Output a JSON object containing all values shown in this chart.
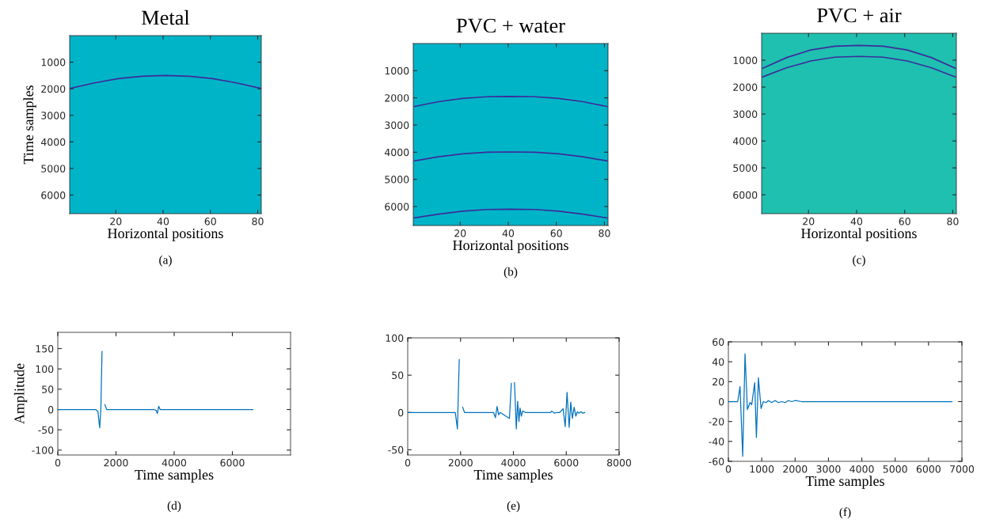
{
  "chart_data": [
    {
      "type": "line",
      "title": "Metal",
      "ylabel": "Time samples",
      "xlabel": "Horizontal positions",
      "annotations": [
        "(a)"
      ],
      "xlim": [
        0.5,
        81.5
      ],
      "ylim": [
        6700,
        0
      ],
      "xticks": [
        20,
        40,
        60,
        80
      ],
      "yticks": [
        1000,
        2000,
        3000,
        4000,
        5000,
        6000
      ],
      "bands": [
        {
          "axis": "x",
          "from": 0.5,
          "to": 81.5,
          "color": "#00b4c8"
        }
      ],
      "x": [
        1,
        11,
        21,
        31,
        41,
        51,
        61,
        71,
        81
      ],
      "series": [
        {
          "color": "#3b2d9b",
          "values": [
            1980,
            1780,
            1620,
            1530,
            1500,
            1530,
            1620,
            1780,
            1980
          ]
        }
      ]
    },
    {
      "type": "line",
      "title": "PVC + water",
      "xlabel": "Horizontal positions",
      "annotations": [
        "(b)"
      ],
      "xlim": [
        0.5,
        81.5
      ],
      "ylim": [
        6700,
        0
      ],
      "xticks": [
        20,
        40,
        60,
        80
      ],
      "yticks": [
        1000,
        2000,
        3000,
        4000,
        5000,
        6000
      ],
      "bands": [
        {
          "axis": "x",
          "from": 0.5,
          "to": 81.5,
          "color": "#00b4c8"
        }
      ],
      "x": [
        1,
        11,
        21,
        31,
        41,
        51,
        61,
        71,
        81
      ],
      "series": [
        {
          "color": "#3b2d9b",
          "values": [
            2320,
            2140,
            2020,
            1960,
            1950,
            1960,
            2020,
            2140,
            2320
          ]
        },
        {
          "color": "#3b2d9b",
          "values": [
            4320,
            4170,
            4060,
            4000,
            3990,
            4000,
            4060,
            4170,
            4320
          ]
        },
        {
          "color": "#3b2d9b",
          "values": [
            6420,
            6280,
            6170,
            6110,
            6100,
            6110,
            6170,
            6280,
            6420
          ]
        }
      ]
    },
    {
      "type": "line",
      "title": "PVC + air",
      "xlabel": "Horizontal positions",
      "annotations": [
        "(c)"
      ],
      "xlim": [
        0.5,
        81.5
      ],
      "ylim": [
        6700,
        0
      ],
      "xticks": [
        20,
        40,
        60,
        80
      ],
      "yticks": [
        1000,
        2000,
        3000,
        4000,
        5000,
        6000
      ],
      "bands": [
        {
          "axis": "x",
          "from": 0.5,
          "to": 81.5,
          "color": "#1fc0b0"
        }
      ],
      "x": [
        1,
        11,
        21,
        31,
        41,
        51,
        61,
        71,
        81
      ],
      "series": [
        {
          "color": "#3b2d9b",
          "values": [
            1300,
            900,
            620,
            480,
            450,
            480,
            620,
            900,
            1300
          ]
        },
        {
          "color": "#3b2d9b",
          "values": [
            1620,
            1280,
            1030,
            890,
            860,
            890,
            1030,
            1280,
            1620
          ]
        }
      ]
    },
    {
      "type": "line",
      "ylabel": "Amplitude",
      "xlabel": "Time samples",
      "annotations": [
        "(d)"
      ],
      "xlim": [
        0,
        8000
      ],
      "ylim": [
        -112,
        190
      ],
      "xticks": [
        0,
        2000,
        4000,
        6000
      ],
      "yticks": [
        -100,
        -50,
        0,
        50,
        100,
        150
      ],
      "x": [
        0,
        1300,
        1380,
        1440,
        1480,
        1520,
        1560,
        1620,
        1680,
        1800,
        3300,
        3380,
        3420,
        3470,
        3520,
        5400,
        6700
      ],
      "series": [
        {
          "color": "#0072bd",
          "values": [
            0,
            0,
            -5,
            -45,
            0,
            143,
            null,
            12,
            0,
            0,
            0,
            -2,
            -10,
            8,
            0,
            0,
            0
          ]
        }
      ]
    },
    {
      "type": "line",
      "xlabel": "Time samples",
      "annotations": [
        "(e)"
      ],
      "xlim": [
        0,
        8000
      ],
      "ylim": [
        -57,
        100
      ],
      "xticks": [
        0,
        2000,
        4000,
        6000,
        8000
      ],
      "yticks": [
        -50,
        0,
        50,
        100
      ],
      "x": [
        0,
        1800,
        1880,
        1950,
        2010,
        2080,
        2150,
        3250,
        3320,
        3380,
        3440,
        3500,
        3850,
        3920,
        3990,
        4040,
        4110,
        4160,
        4210,
        4250,
        4300,
        4350,
        4450,
        5400,
        5450,
        5550,
        5650,
        5750,
        5880,
        5960,
        6030,
        6110,
        6170,
        6230,
        6300,
        6360,
        6420,
        6480,
        6560,
        6620,
        6700
      ],
      "series": [
        {
          "color": "#0072bd",
          "values": [
            0,
            0,
            -22,
            71,
            null,
            7,
            0,
            0,
            -7,
            8,
            -3,
            0,
            -8,
            39,
            null,
            40,
            -22,
            15,
            -12,
            6,
            -5,
            2,
            0,
            0,
            2,
            -1,
            0,
            0,
            5,
            -19,
            27,
            -20,
            14,
            -8,
            7,
            -5,
            1,
            -1,
            1,
            -1,
            0
          ]
        }
      ]
    },
    {
      "type": "line",
      "xlabel": "Time samples",
      "annotations": [
        "(f)"
      ],
      "xlim": [
        0,
        7000
      ],
      "ylim": [
        -60,
        60
      ],
      "xticks": [
        0,
        1000,
        2000,
        3000,
        4000,
        5000,
        6000,
        7000
      ],
      "yticks": [
        -60,
        -40,
        -20,
        0,
        20,
        40,
        60
      ],
      "x": [
        0,
        280,
        350,
        430,
        500,
        570,
        650,
        700,
        790,
        840,
        900,
        980,
        1050,
        1130,
        1200,
        1300,
        1400,
        1500,
        1600,
        1700,
        1800,
        1900,
        2000,
        2200,
        6700
      ],
      "series": [
        {
          "color": "#0072bd",
          "values": [
            0,
            0,
            15,
            -55,
            48,
            -8,
            -1,
            -3,
            19,
            -36,
            24,
            -7,
            0,
            -1,
            1,
            -1,
            1,
            -1,
            0,
            -1,
            1,
            0,
            1,
            0,
            0
          ]
        }
      ]
    }
  ]
}
